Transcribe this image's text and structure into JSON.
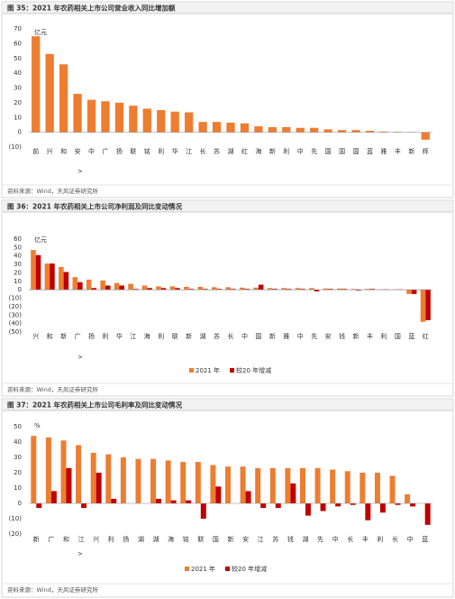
{
  "chart_data": [
    {
      "type": "bar",
      "title": "图 35：2021 年农药相关上市公司营业收入同比增加额",
      "unit": "亿元",
      "annotation": ">",
      "source": "资料来源：Wind，天风证券研究所",
      "categories": [
        "前",
        "兴",
        "和",
        "安",
        "中",
        "广",
        "扬",
        "联",
        "铭",
        "利",
        "华",
        "江",
        "长",
        "苏",
        "湖",
        "红",
        "海",
        "新",
        "利",
        "中",
        "先",
        "国",
        "国",
        "国",
        "蓝",
        "雅",
        "丰",
        "新",
        "辉"
      ],
      "values": [
        65,
        53,
        46,
        26,
        22,
        21,
        20,
        18,
        16,
        15,
        14,
        13.5,
        7,
        7,
        6.5,
        6,
        4,
        3.5,
        3.5,
        3,
        3,
        2,
        1.5,
        1.5,
        1,
        0.5,
        0.3,
        0.2,
        -5
      ],
      "color": "#ed7d31",
      "ylim": [
        -10,
        70
      ],
      "yticks": [
        {
          "value": -10,
          "label": "(10)"
        },
        0,
        10,
        20,
        30,
        40,
        50,
        60,
        70
      ]
    },
    {
      "type": "bar",
      "title": "图 36：2021 年农药相关上市公司净利润及同比变动情况",
      "unit": "亿元",
      "annotation": ">",
      "source": "资料来源：Wind，天风证券研究所",
      "categories": [
        "兴",
        "和",
        "新",
        "广",
        "扬",
        "利",
        "华",
        "江",
        "海",
        "利",
        "联",
        "新",
        "湖",
        "苏",
        "长",
        "中",
        "国",
        "新",
        "雅",
        "中",
        "先",
        "安",
        "钱",
        "新",
        "丰",
        "利",
        "国",
        "蓝",
        "红"
      ],
      "series": [
        {
          "name": "2021 年",
          "color": "#ed7d31",
          "values": [
            47,
            31,
            27,
            15,
            12,
            11,
            8,
            7,
            5,
            4,
            4,
            3.5,
            3.5,
            3,
            3,
            2.5,
            2.5,
            2,
            2,
            2,
            2,
            1.5,
            1.5,
            1,
            1,
            0.5,
            0.5,
            -5,
            -38
          ]
        },
        {
          "name": "较20 年增减",
          "color": "#c00000",
          "values": [
            41,
            31,
            21,
            9,
            2,
            5,
            5,
            1,
            2,
            2,
            2,
            1,
            1,
            1,
            1,
            1,
            6,
            1,
            1,
            1,
            -2,
            1,
            1,
            -1,
            1,
            0.5,
            0.5,
            -5,
            -36
          ]
        }
      ],
      "ylim": [
        -50,
        60
      ],
      "yticks": [
        {
          "value": -50,
          "label": "(50)"
        },
        {
          "value": -40,
          "label": "(40)"
        },
        {
          "value": -30,
          "label": "(30)"
        },
        {
          "value": -20,
          "label": "(20)"
        },
        {
          "value": -10,
          "label": "(10)"
        },
        0,
        10,
        20,
        30,
        40,
        50,
        60
      ]
    },
    {
      "type": "bar",
      "title": "图 37：2021 年农药相关上市公司毛利率及同比变动情况",
      "unit": "%",
      "annotation": ">",
      "source": "资料来源：Wind，天风证券研究所",
      "categories": [
        "新",
        "广",
        "和",
        "江",
        "兴",
        "利",
        "扬",
        "湖",
        "湖",
        "海",
        "铭",
        "联",
        "国",
        "新",
        "安",
        "江",
        "苏",
        "钱",
        "湖",
        "先",
        "中",
        "长",
        "丰",
        "利",
        "长",
        "中",
        "蓝"
      ],
      "series": [
        {
          "name": "2021 年",
          "color": "#ed7d31",
          "values": [
            44,
            43,
            41,
            38,
            33,
            32,
            30,
            29,
            29,
            28,
            27,
            27,
            25,
            24,
            24,
            23,
            23,
            23,
            23,
            23,
            22,
            21,
            20,
            20,
            18,
            6,
            0
          ]
        },
        {
          "name": "较20 年增减",
          "color": "#c00000",
          "values": [
            -3,
            8,
            23,
            -3,
            20,
            3,
            0,
            0,
            3,
            2,
            2,
            -10,
            11,
            0,
            8,
            -3,
            -3,
            13,
            -8,
            -5,
            -2,
            -1,
            -11,
            -6,
            -1,
            -2,
            -14
          ]
        }
      ],
      "ylim": [
        -20,
        50
      ],
      "yticks": [
        {
          "value": -20,
          "label": "(20)"
        },
        {
          "value": -10,
          "label": "(10)"
        },
        0,
        10,
        20,
        30,
        40,
        50
      ]
    }
  ]
}
